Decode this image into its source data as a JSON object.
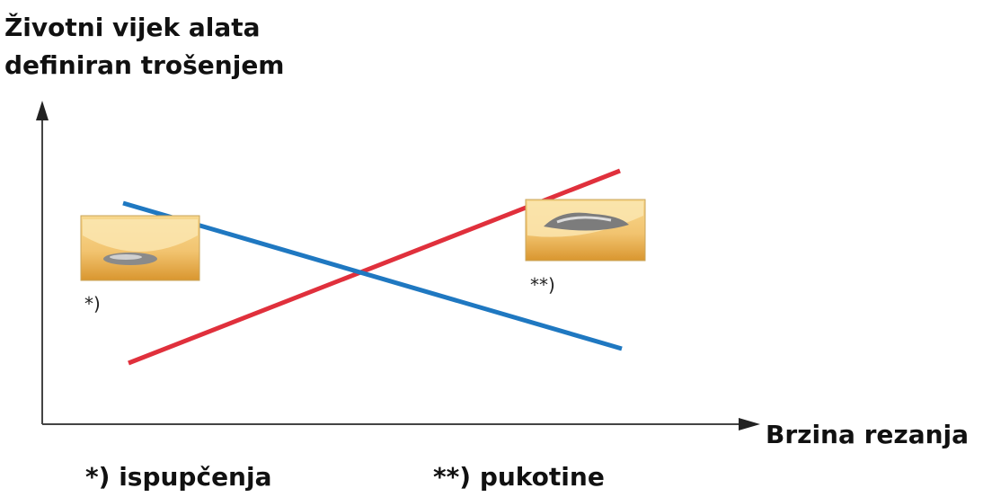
{
  "y_axis_label": [
    "Životni vijek alata",
    "definiran trošenjem"
  ],
  "x_axis_label": "Brzina rezanja",
  "inset_marks": [
    "*)",
    "**)"
  ],
  "legend": [
    "*) ispupčenja",
    "**) pukotine"
  ]
}
